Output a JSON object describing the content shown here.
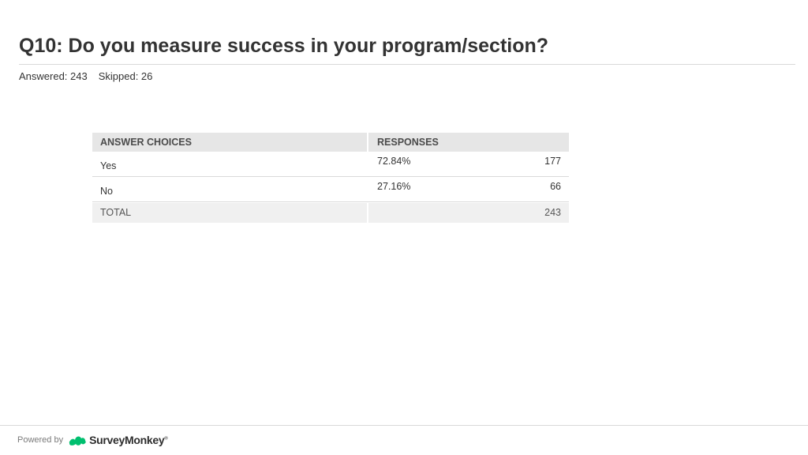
{
  "question": {
    "title": "Q10: Do you measure success in your program/section?",
    "answered": "Answered: 243",
    "skipped": "Skipped: 26"
  },
  "table": {
    "headers": {
      "choices": "ANSWER CHOICES",
      "responses": "RESPONSES"
    },
    "rows": [
      {
        "choice": "Yes",
        "percent": "72.84%",
        "count": "177"
      },
      {
        "choice": "No",
        "percent": "27.16%",
        "count": "66"
      }
    ],
    "total": {
      "label": "TOTAL",
      "count": "243"
    }
  },
  "footer": {
    "powered_by": "Powered by",
    "brand": "SurveyMonkey",
    "brand_mark": "®",
    "icon": "surveymonkey-logo-icon",
    "brand_color": "#00bf6f"
  }
}
